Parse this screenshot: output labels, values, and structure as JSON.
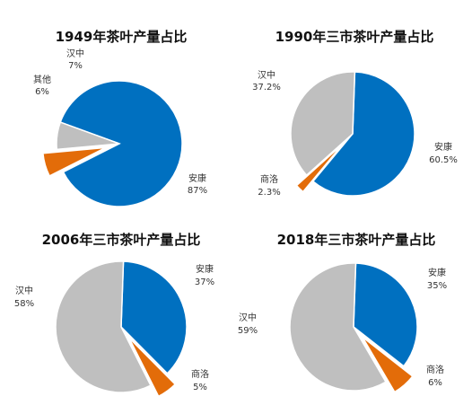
{
  "chart_data": [
    {
      "type": "pie",
      "title": "1949年茶叶产量占比",
      "slices": [
        {
          "name": "安康",
          "value": 87,
          "label": "87%",
          "color": "#0070C0"
        },
        {
          "name": "其他",
          "value": 6,
          "label": "6%",
          "color": "#E36C09"
        },
        {
          "name": "汉中",
          "value": 7,
          "label": "7%",
          "color": "#BFBFBF"
        }
      ]
    },
    {
      "type": "pie",
      "title": "1990年三市茶叶产量占比",
      "slices": [
        {
          "name": "安康",
          "value": 60.5,
          "label": "60.5%",
          "color": "#0070C0"
        },
        {
          "name": "商洛",
          "value": 2.3,
          "label": "2.3%",
          "color": "#E36C09"
        },
        {
          "name": "汉中",
          "value": 37.2,
          "label": "37.2%",
          "color": "#BFBFBF"
        }
      ]
    },
    {
      "type": "pie",
      "title": "2006年三市茶叶产量占比",
      "slices": [
        {
          "name": "安康",
          "value": 37,
          "label": "37%",
          "color": "#0070C0"
        },
        {
          "name": "商洛",
          "value": 5,
          "label": "5%",
          "color": "#E36C09"
        },
        {
          "name": "汉中",
          "value": 58,
          "label": "58%",
          "color": "#BFBFBF"
        }
      ]
    },
    {
      "type": "pie",
      "title": "2018年三市茶叶产量占比",
      "slices": [
        {
          "name": "安康",
          "value": 35,
          "label": "35%",
          "color": "#0070C0"
        },
        {
          "name": "商洛",
          "value": 6,
          "label": "6%",
          "color": "#E36C09"
        },
        {
          "name": "汉中",
          "value": 59,
          "label": "59%",
          "color": "#BFBFBF"
        }
      ]
    }
  ]
}
